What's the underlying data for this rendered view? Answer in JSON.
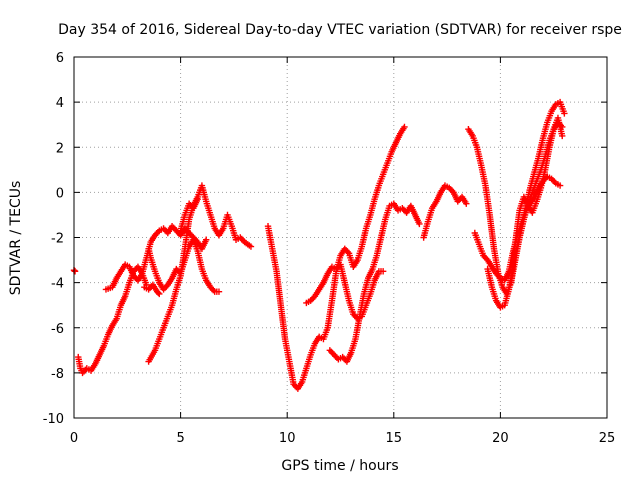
{
  "chart_data": {
    "type": "scatter",
    "title": "Day 354 of 2016, Sidereal Day-to-day VTEC variation (SDTVAR) for receiver rspe",
    "xlabel": "GPS time / hours",
    "ylabel": "SDTVAR / TECUs",
    "xlim": [
      0,
      25
    ],
    "ylim": [
      -10,
      6
    ],
    "xticks": [
      0,
      5,
      10,
      15,
      20,
      25
    ],
    "yticks": [
      -10,
      -8,
      -6,
      -4,
      -2,
      0,
      2,
      4,
      6
    ],
    "grid": true,
    "marker": "+",
    "color": "#ff0000",
    "series": [
      {
        "x": [
          0.0,
          0.05
        ],
        "y": [
          -3.45,
          -3.5
        ]
      },
      {
        "x": [
          0.2,
          0.3,
          0.4,
          0.6,
          0.8,
          1.0,
          1.2,
          1.4,
          1.6,
          1.8,
          2.0,
          2.2,
          2.4,
          2.6,
          2.8,
          3.0,
          3.2,
          3.4
        ],
        "y": [
          -7.3,
          -7.8,
          -8.0,
          -7.8,
          -7.9,
          -7.6,
          -7.2,
          -6.8,
          -6.3,
          -5.9,
          -5.6,
          -5.0,
          -4.6,
          -4.0,
          -3.5,
          -3.3,
          -3.6,
          -4.1
        ]
      },
      {
        "x": [
          1.5,
          1.8,
          2.0,
          2.2,
          2.4,
          2.6,
          2.8,
          3.0,
          3.2,
          3.4,
          3.6,
          3.8,
          4.0,
          4.2,
          4.4,
          4.6,
          4.8,
          5.0,
          5.2,
          5.4,
          5.6,
          5.8,
          6.0,
          6.2
        ],
        "y": [
          -4.3,
          -4.2,
          -3.8,
          -3.5,
          -3.2,
          -3.3,
          -3.7,
          -3.9,
          -3.6,
          -2.9,
          -2.2,
          -1.9,
          -1.7,
          -1.6,
          -1.8,
          -1.5,
          -1.7,
          -1.9,
          -1.6,
          -1.8,
          -2.0,
          -2.2,
          -2.5,
          -2.1
        ]
      },
      {
        "x": [
          3.3,
          3.5,
          3.7,
          3.9,
          4.0
        ],
        "y": [
          -4.2,
          -4.3,
          -4.1,
          -4.4,
          -4.5
        ]
      },
      {
        "x": [
          3.5,
          3.6,
          3.8,
          4.0,
          4.2,
          4.4,
          4.6,
          4.8,
          5.0,
          5.2,
          5.4,
          5.6,
          5.8,
          6.0,
          6.2,
          6.4,
          6.6,
          6.8
        ],
        "y": [
          -2.5,
          -2.9,
          -3.5,
          -4.0,
          -4.3,
          -4.1,
          -3.8,
          -3.4,
          -3.6,
          -3.0,
          -2.4,
          -2.1,
          -2.6,
          -3.4,
          -3.9,
          -4.2,
          -4.4,
          -4.4
        ]
      },
      {
        "x": [
          3.5,
          3.8,
          4.0,
          4.2,
          4.4,
          4.6,
          4.8,
          5.0,
          5.2,
          5.4,
          5.6,
          5.8,
          6.0,
          6.2,
          6.4,
          6.6,
          6.8,
          7.0,
          7.2,
          7.4,
          7.6,
          7.8,
          8.0,
          8.3
        ],
        "y": [
          -7.5,
          -7.0,
          -6.5,
          -6.0,
          -5.5,
          -5.0,
          -4.3,
          -3.7,
          -2.5,
          -1.2,
          -0.6,
          -0.2,
          0.3,
          -0.4,
          -1.0,
          -1.6,
          -1.9,
          -1.6,
          -1.0,
          -1.5,
          -2.1,
          -2.0,
          -2.2,
          -2.4
        ]
      },
      {
        "x": [
          5.0,
          5.2,
          5.4,
          5.6,
          5.8
        ],
        "y": [
          -1.7,
          -1.0,
          -0.5,
          -0.7,
          -0.3
        ]
      },
      {
        "x": [
          9.1,
          9.3,
          9.5,
          9.7,
          9.9,
          10.1,
          10.3,
          10.5,
          10.7,
          10.9,
          11.1,
          11.3,
          11.5,
          11.7,
          11.9,
          12.1,
          12.3,
          12.5,
          12.7,
          12.9,
          13.1,
          13.3,
          13.5,
          13.7,
          13.9,
          14.1,
          14.3,
          14.5,
          14.7,
          14.9,
          15.1,
          15.3,
          15.5
        ],
        "y": [
          -1.5,
          -2.5,
          -3.5,
          -5.0,
          -6.5,
          -7.5,
          -8.5,
          -8.7,
          -8.4,
          -7.8,
          -7.2,
          -6.7,
          -6.4,
          -6.5,
          -6.0,
          -4.8,
          -3.5,
          -2.8,
          -2.5,
          -2.7,
          -3.3,
          -3.0,
          -2.4,
          -1.6,
          -1.0,
          -0.3,
          0.3,
          0.8,
          1.3,
          1.8,
          2.2,
          2.6,
          2.9
        ]
      },
      {
        "x": [
          10.9,
          11.1,
          11.3,
          11.5,
          11.7,
          11.9,
          12.1,
          12.3,
          12.5,
          12.7,
          12.9,
          13.1,
          13.3,
          13.5,
          13.7,
          13.9,
          14.1,
          14.3,
          14.5
        ],
        "y": [
          -4.9,
          -4.8,
          -4.6,
          -4.3,
          -4.0,
          -3.6,
          -3.3,
          -3.4,
          -3.2,
          -4.0,
          -4.8,
          -5.4,
          -5.6,
          -5.5,
          -5.0,
          -4.5,
          -3.9,
          -3.5,
          -3.5
        ]
      },
      {
        "x": [
          12.0,
          12.2,
          12.4,
          12.6,
          12.8,
          13.0,
          13.2,
          13.4,
          13.6,
          13.8,
          14.0,
          14.2,
          14.4,
          14.6,
          14.8,
          15.0,
          15.2,
          15.4,
          15.6,
          15.8,
          16.0,
          16.2
        ],
        "y": [
          -7.0,
          -7.2,
          -7.4,
          -7.3,
          -7.5,
          -7.1,
          -6.5,
          -5.5,
          -4.5,
          -3.8,
          -3.4,
          -2.8,
          -2.0,
          -1.2,
          -0.6,
          -0.5,
          -0.8,
          -0.7,
          -0.9,
          -0.6,
          -1.0,
          -1.4
        ]
      },
      {
        "x": [
          16.4,
          16.6,
          16.8,
          17.0,
          17.2,
          17.4,
          17.6,
          17.8,
          18.0,
          18.2,
          18.4
        ],
        "y": [
          -2.0,
          -1.3,
          -0.7,
          -0.4,
          0.0,
          0.3,
          0.2,
          0.0,
          -0.4,
          -0.2,
          -0.5
        ]
      },
      {
        "x": [
          18.5,
          18.7,
          18.9,
          19.1,
          19.3,
          19.5,
          19.7,
          19.9,
          20.1,
          20.3,
          20.5,
          20.7,
          20.9,
          21.1,
          21.3,
          21.5,
          21.7,
          21.9,
          22.1,
          22.3,
          22.5,
          22.7,
          22.9
        ],
        "y": [
          2.8,
          2.5,
          2.0,
          1.2,
          0.3,
          -1.0,
          -2.5,
          -3.6,
          -4.2,
          -4.5,
          -4.0,
          -3.0,
          -2.0,
          -1.2,
          -0.5,
          0.0,
          0.5,
          1.0,
          1.6,
          2.3,
          2.8,
          3.1,
          2.9
        ]
      },
      {
        "x": [
          18.8,
          19.0,
          19.2,
          19.4,
          19.6,
          19.8,
          20.0,
          20.2,
          20.4,
          20.6,
          20.8,
          21.0,
          21.2,
          21.4,
          21.6,
          21.8,
          22.0,
          22.2,
          22.4,
          22.6,
          22.8
        ],
        "y": [
          -1.8,
          -2.3,
          -2.8,
          -3.0,
          -3.3,
          -3.6,
          -3.8,
          -3.9,
          -3.5,
          -2.6,
          -1.9,
          -1.3,
          -0.8,
          -0.5,
          -0.2,
          0.2,
          0.5,
          0.7,
          0.6,
          0.4,
          0.3
        ]
      },
      {
        "x": [
          19.4,
          19.6,
          19.8,
          20.0,
          20.2,
          20.4,
          20.6,
          20.8,
          21.0,
          21.2,
          21.4,
          21.6,
          21.8,
          22.0,
          22.2,
          22.4,
          22.6,
          22.8,
          23.0
        ],
        "y": [
          -3.4,
          -4.2,
          -4.8,
          -5.1,
          -5.0,
          -4.3,
          -3.3,
          -2.3,
          -1.5,
          -0.6,
          0.2,
          0.9,
          1.6,
          2.4,
          3.1,
          3.6,
          3.9,
          4.0,
          3.5
        ]
      },
      {
        "x": [
          20.5,
          20.7,
          20.9,
          21.1,
          21.3,
          21.5,
          21.7,
          21.9,
          22.1,
          22.3,
          22.5,
          22.7,
          22.9
        ],
        "y": [
          -4.0,
          -2.2,
          -0.8,
          -0.2,
          -0.6,
          -0.9,
          -0.4,
          0.2,
          1.0,
          2.0,
          2.8,
          3.3,
          2.5
        ]
      }
    ]
  }
}
